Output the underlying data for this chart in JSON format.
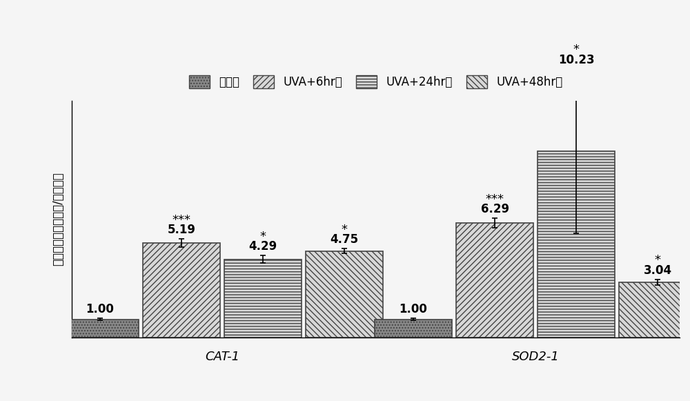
{
  "groups": [
    "CAT-1",
    "SOD2-1"
  ],
  "series": [
    "控制組",
    "UVA+6hr組",
    "UVA+24hr組",
    "UVA+48hr組"
  ],
  "values": {
    "CAT-1": [
      1.0,
      5.19,
      4.29,
      4.75
    ],
    "SOD2-1": [
      1.0,
      6.29,
      10.23,
      3.04
    ]
  },
  "errors": {
    "CAT-1": [
      0.05,
      0.22,
      0.2,
      0.12
    ],
    "SOD2-1": [
      0.05,
      0.25,
      4.5,
      0.15
    ]
  },
  "significance": {
    "CAT-1": [
      "",
      "***",
      "*",
      "*"
    ],
    "SOD2-1": [
      "",
      "***",
      "*",
      "*"
    ]
  },
  "bar_facecolors": [
    "#888888",
    "#d8d8d8",
    "#d8d8d8",
    "#d8d8d8"
  ],
  "hatches": [
    "....",
    "////",
    "----",
    "\\\\\\\\"
  ],
  "bar_edge_colors": [
    "#444444",
    "#444444",
    "#444444",
    "#444444"
  ],
  "ylabel": "相對表現量（實驗組/控制組）",
  "background_color": "#f5f5f5",
  "ylim": [
    0,
    13
  ],
  "bar_width": 0.13,
  "group_centers": [
    0.32,
    0.82
  ],
  "xlim": [
    0.08,
    1.05
  ],
  "legend_labels": [
    "控制組",
    "UVA+6hr組",
    "UVA+24hr組",
    "UVA+48hr組"
  ],
  "legend_hatches": [
    "....",
    "////",
    "----",
    "\\\\\\\\"
  ],
  "legend_facecolors": [
    "#888888",
    "#d8d8d8",
    "#d8d8d8",
    "#d8d8d8"
  ],
  "label_fontsize": 12,
  "value_fontsize": 12,
  "sig_fontsize": 13,
  "group_label_fontsize": 13,
  "legend_fontsize": 12
}
